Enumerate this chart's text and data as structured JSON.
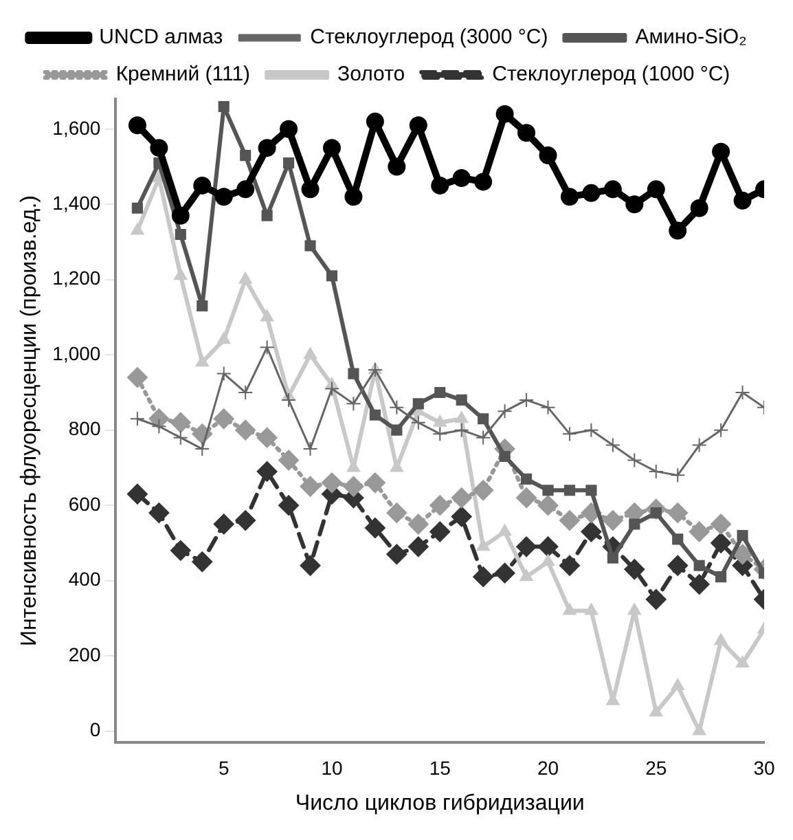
{
  "chart_data": {
    "type": "line",
    "xlabel": "Число циклов гибридизации",
    "ylabel": "Интенсивность флуоресценции (произв.ед.)",
    "x": [
      1,
      2,
      3,
      4,
      5,
      6,
      7,
      8,
      9,
      10,
      11,
      12,
      13,
      14,
      15,
      16,
      17,
      18,
      19,
      20,
      21,
      22,
      23,
      24,
      25,
      26,
      27,
      28,
      29,
      30
    ],
    "xlim": [
      0,
      30
    ],
    "xticks": [
      5,
      10,
      15,
      20,
      25,
      30
    ],
    "ylim": [
      -30,
      1680
    ],
    "yticks": [
      0,
      200,
      400,
      600,
      800,
      {
        "value": 1000,
        "label": "1,000"
      },
      {
        "value": 1200,
        "label": "1,200"
      },
      {
        "value": 1400,
        "label": "1,400"
      },
      {
        "value": 1600,
        "label": "1,600"
      }
    ],
    "grid": false,
    "legend": "top",
    "series": [
      {
        "name": "UNCD алмаз",
        "color": "#000000",
        "marker": "circle",
        "line_style": "solid",
        "values": [
          1610,
          1550,
          1370,
          1450,
          1420,
          1440,
          1550,
          1600,
          1440,
          1550,
          1420,
          1620,
          1500,
          1610,
          1450,
          1470,
          1460,
          1640,
          1590,
          1530,
          1420,
          1430,
          1440,
          1400,
          1440,
          1330,
          1390,
          1540,
          1410,
          1440
        ]
      },
      {
        "name": "Стеклоуглерод (3000 °C)",
        "color": "#666666",
        "marker": "cross",
        "line_style": "solid",
        "values": [
          830,
          810,
          780,
          750,
          950,
          900,
          1020,
          880,
          750,
          910,
          870,
          960,
          860,
          820,
          790,
          800,
          780,
          850,
          880,
          860,
          790,
          800,
          760,
          720,
          690,
          680,
          760,
          800,
          900,
          860
        ]
      },
      {
        "name": "Амино-SiO₂",
        "color": "#555555",
        "marker": "square",
        "line_style": "solid",
        "values": [
          1390,
          1510,
          1320,
          1130,
          1660,
          1530,
          1370,
          1510,
          1290,
          1210,
          950,
          840,
          800,
          870,
          900,
          880,
          830,
          730,
          670,
          640,
          640,
          640,
          460,
          550,
          580,
          510,
          440,
          410,
          520,
          420
        ]
      },
      {
        "name": "Кремний (111)",
        "color": "#999999",
        "marker": "diamond",
        "line_style": "dotted",
        "values": [
          940,
          830,
          820,
          790,
          830,
          800,
          780,
          720,
          650,
          660,
          650,
          660,
          580,
          550,
          600,
          620,
          640,
          750,
          620,
          600,
          560,
          580,
          560,
          580,
          590,
          580,
          530,
          550,
          470,
          430
        ]
      },
      {
        "name": "Золото",
        "color": "#c8c8c8",
        "marker": "triangle",
        "line_style": "solid",
        "values": [
          1330,
          1470,
          1210,
          980,
          1040,
          1200,
          1100,
          890,
          1000,
          920,
          700,
          960,
          700,
          850,
          820,
          830,
          490,
          530,
          410,
          450,
          320,
          320,
          80,
          320,
          50,
          120,
          0,
          240,
          180,
          270
        ]
      },
      {
        "name": "Стеклоуглерод (1000 °C)",
        "color": "#333333",
        "marker": "diamond",
        "line_style": "dashed",
        "values": [
          630,
          580,
          480,
          450,
          550,
          560,
          690,
          600,
          440,
          630,
          620,
          540,
          470,
          490,
          530,
          570,
          410,
          420,
          490,
          490,
          440,
          530,
          490,
          430,
          350,
          440,
          390,
          500,
          440,
          350
        ]
      }
    ]
  }
}
